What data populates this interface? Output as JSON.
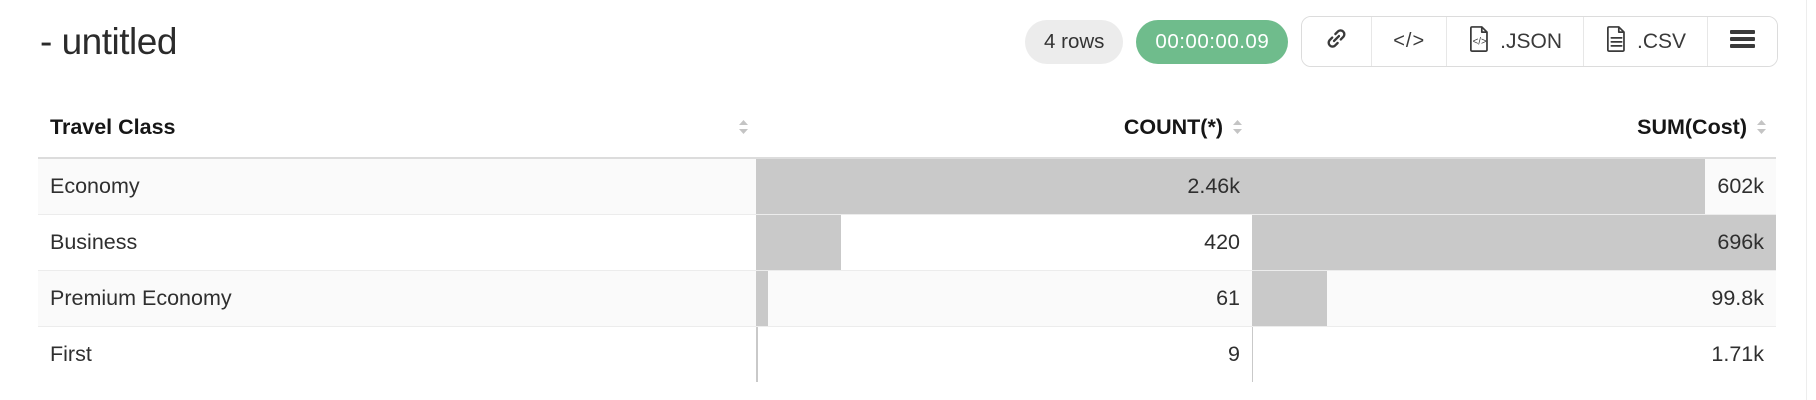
{
  "header": {
    "title": "- untitled",
    "rows_badge": "4 rows",
    "timer_badge": "00:00:00.09"
  },
  "toolbar": {
    "code_label": "</>",
    "json_label": ".JSON",
    "csv_label": ".CSV"
  },
  "colors": {
    "timer_green": "#6fbc8c",
    "bar_gray": "#c9c9c9",
    "stripe": "#fafafa"
  },
  "table": {
    "columns": [
      {
        "label": "Travel Class",
        "align": "left"
      },
      {
        "label": "COUNT(*)",
        "align": "right"
      },
      {
        "label": "SUM(Cost)",
        "align": "right"
      }
    ],
    "rows": [
      {
        "travel_class": "Economy",
        "count_display": "2.46k",
        "count_value": 2460,
        "sum_display": "602k",
        "sum_value": 602000
      },
      {
        "travel_class": "Business",
        "count_display": "420",
        "count_value": 420,
        "sum_display": "696k",
        "sum_value": 696000
      },
      {
        "travel_class": "Premium Economy",
        "count_display": "61",
        "count_value": 61,
        "sum_display": "99.8k",
        "sum_value": 99800
      },
      {
        "travel_class": "First",
        "count_display": "9",
        "count_value": 9,
        "sum_display": "1.71k",
        "sum_value": 1710
      }
    ]
  }
}
